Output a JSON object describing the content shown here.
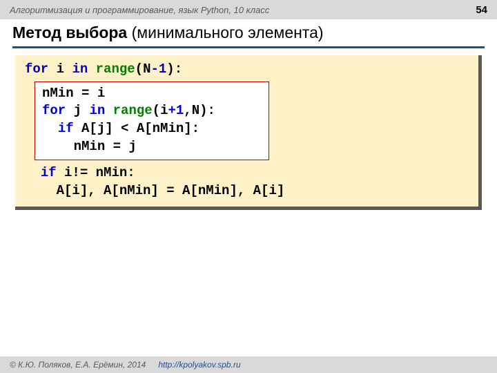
{
  "header": {
    "course_title": "Алгоритмизация и программирование, язык Python, 10 класс",
    "page_number": "54"
  },
  "title": {
    "bold": "Метод выбора",
    "rest": " (минимального элемента)"
  },
  "colors": {
    "header_bg": "#d9d9d9",
    "underline": "#1f4e9c",
    "code_bg": "#fff2c9",
    "code_shadow": "#595959",
    "inner_border": "#c00000",
    "kw_blue": "#0000cd",
    "kw_green": "#008000"
  },
  "code": {
    "line1": {
      "for": "for",
      "i": " i ",
      "in": "in",
      "sp": " ",
      "range": "range",
      "open": "(N",
      "minus": "-",
      "one": "1",
      "close": "):"
    },
    "inner": {
      "l1": "nMin = i",
      "l2": {
        "for": "for",
        "j": " j ",
        "in": "in",
        "sp": " ",
        "range": "range",
        "open": "(i",
        "plus": "+",
        "one": "1",
        "rest": ",N):"
      },
      "l3": {
        "indent": "  ",
        "if": "if",
        "rest": " A[j] < A[nMin]:"
      },
      "l4": "    nMin = j"
    },
    "line5": {
      "indent": "  ",
      "if": "if",
      "rest": " i!= nMin:"
    },
    "line6": "    A[i], A[nMin] = A[nMin], A[i]"
  },
  "footer": {
    "copyright": "© К.Ю. Поляков, Е.А. Ерёмин, 2014",
    "url": "http://kpolyakov.spb.ru"
  }
}
